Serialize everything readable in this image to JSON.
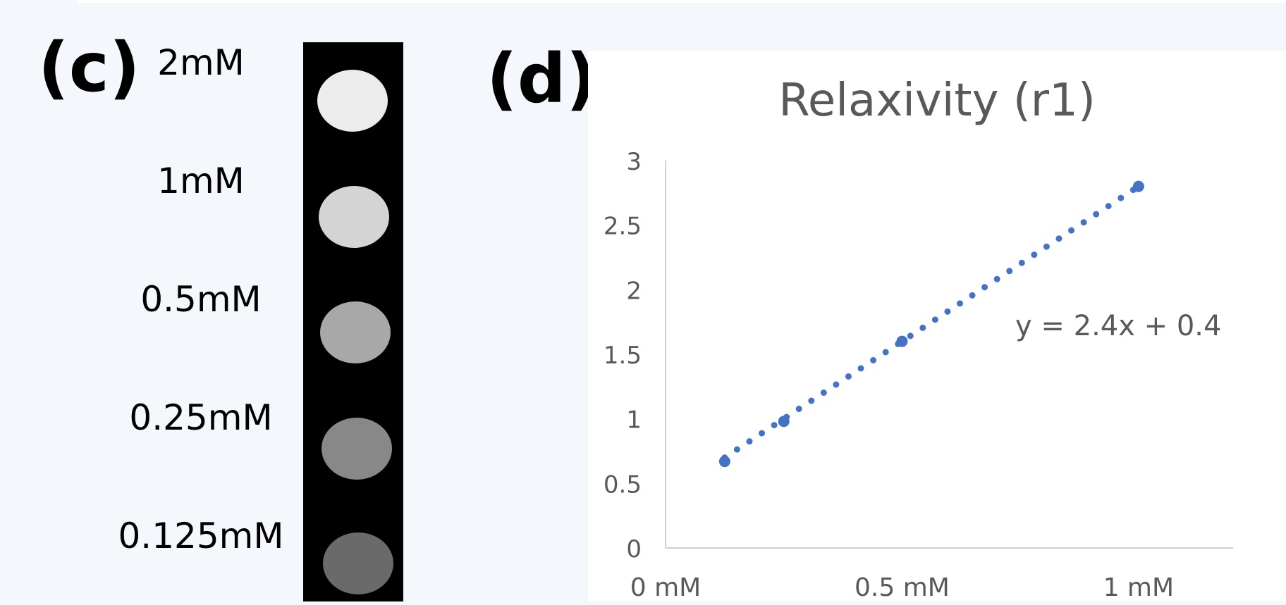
{
  "panel_c": {
    "label": "(c)",
    "samples": [
      {
        "label": "2mM",
        "brightness": "#ececec"
      },
      {
        "label": "1mM",
        "brightness": "#d4d4d4"
      },
      {
        "label": "0.5mM",
        "brightness": "#a8a8a8"
      },
      {
        "label": "0.25mM",
        "brightness": "#888888"
      },
      {
        "label": "0.125mM",
        "brightness": "#6a6a6a"
      }
    ]
  },
  "panel_d": {
    "label": "(d)"
  },
  "chart_data": {
    "type": "scatter",
    "title": "Relaxivity (r1)",
    "xlabel": "",
    "ylabel": "",
    "x_ticks": [
      {
        "value": 0,
        "label": "0 mM"
      },
      {
        "value": 0.5,
        "label": "0.5 mM"
      },
      {
        "value": 1,
        "label": "1 mM"
      }
    ],
    "y_ticks": [
      0,
      0.5,
      1,
      1.5,
      2,
      2.5,
      3
    ],
    "xlim": [
      0,
      1.2
    ],
    "ylim": [
      0,
      3
    ],
    "series": [
      {
        "x": [
          0.125,
          0.25,
          0.5,
          1
        ],
        "y": [
          0.67,
          0.98,
          1.6,
          2.8
        ],
        "color": "#4472c4"
      }
    ],
    "trendline": {
      "slope": 2.4,
      "intercept": 0.4,
      "x_range": [
        0.125,
        1
      ],
      "equation": "y = 2.4x + 0.4",
      "style": "dotted",
      "color": "#4472c4"
    },
    "grid": false
  }
}
